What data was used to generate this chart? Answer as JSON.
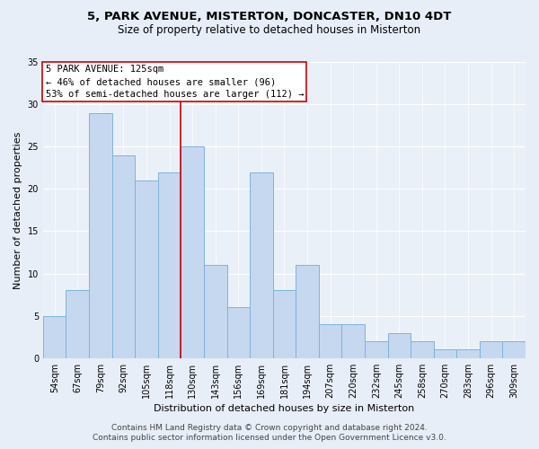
{
  "title1": "5, PARK AVENUE, MISTERTON, DONCASTER, DN10 4DT",
  "title2": "Size of property relative to detached houses in Misterton",
  "xlabel": "Distribution of detached houses by size in Misterton",
  "ylabel": "Number of detached properties",
  "categories": [
    "54sqm",
    "67sqm",
    "79sqm",
    "92sqm",
    "105sqm",
    "118sqm",
    "130sqm",
    "143sqm",
    "156sqm",
    "169sqm",
    "181sqm",
    "194sqm",
    "207sqm",
    "220sqm",
    "232sqm",
    "245sqm",
    "258sqm",
    "270sqm",
    "283sqm",
    "296sqm",
    "309sqm"
  ],
  "values": [
    5,
    8,
    29,
    24,
    21,
    22,
    25,
    11,
    6,
    22,
    8,
    11,
    4,
    4,
    2,
    3,
    2,
    1,
    1,
    2,
    2
  ],
  "bar_color": "#c5d8f0",
  "bar_edgecolor": "#7fb3d9",
  "annotation_line1": "5 PARK AVENUE: 125sqm",
  "annotation_line2": "← 46% of detached houses are smaller (96)",
  "annotation_line3": "53% of semi-detached houses are larger (112) →",
  "annotation_box_color": "#ffffff",
  "annotation_box_edgecolor": "#cc0000",
  "vline_color": "#cc0000",
  "vline_x": 5.5,
  "ylim": [
    0,
    35
  ],
  "yticks": [
    0,
    5,
    10,
    15,
    20,
    25,
    30,
    35
  ],
  "footer1": "Contains HM Land Registry data © Crown copyright and database right 2024.",
  "footer2": "Contains public sector information licensed under the Open Government Licence v3.0.",
  "bg_color": "#e8eef7",
  "plot_bg_color": "#eaf0f8",
  "grid_color": "#ffffff",
  "title1_fontsize": 9.5,
  "title2_fontsize": 8.5,
  "xlabel_fontsize": 8,
  "ylabel_fontsize": 8,
  "tick_fontsize": 7,
  "footer_fontsize": 6.5,
  "annotation_fontsize": 7.5
}
